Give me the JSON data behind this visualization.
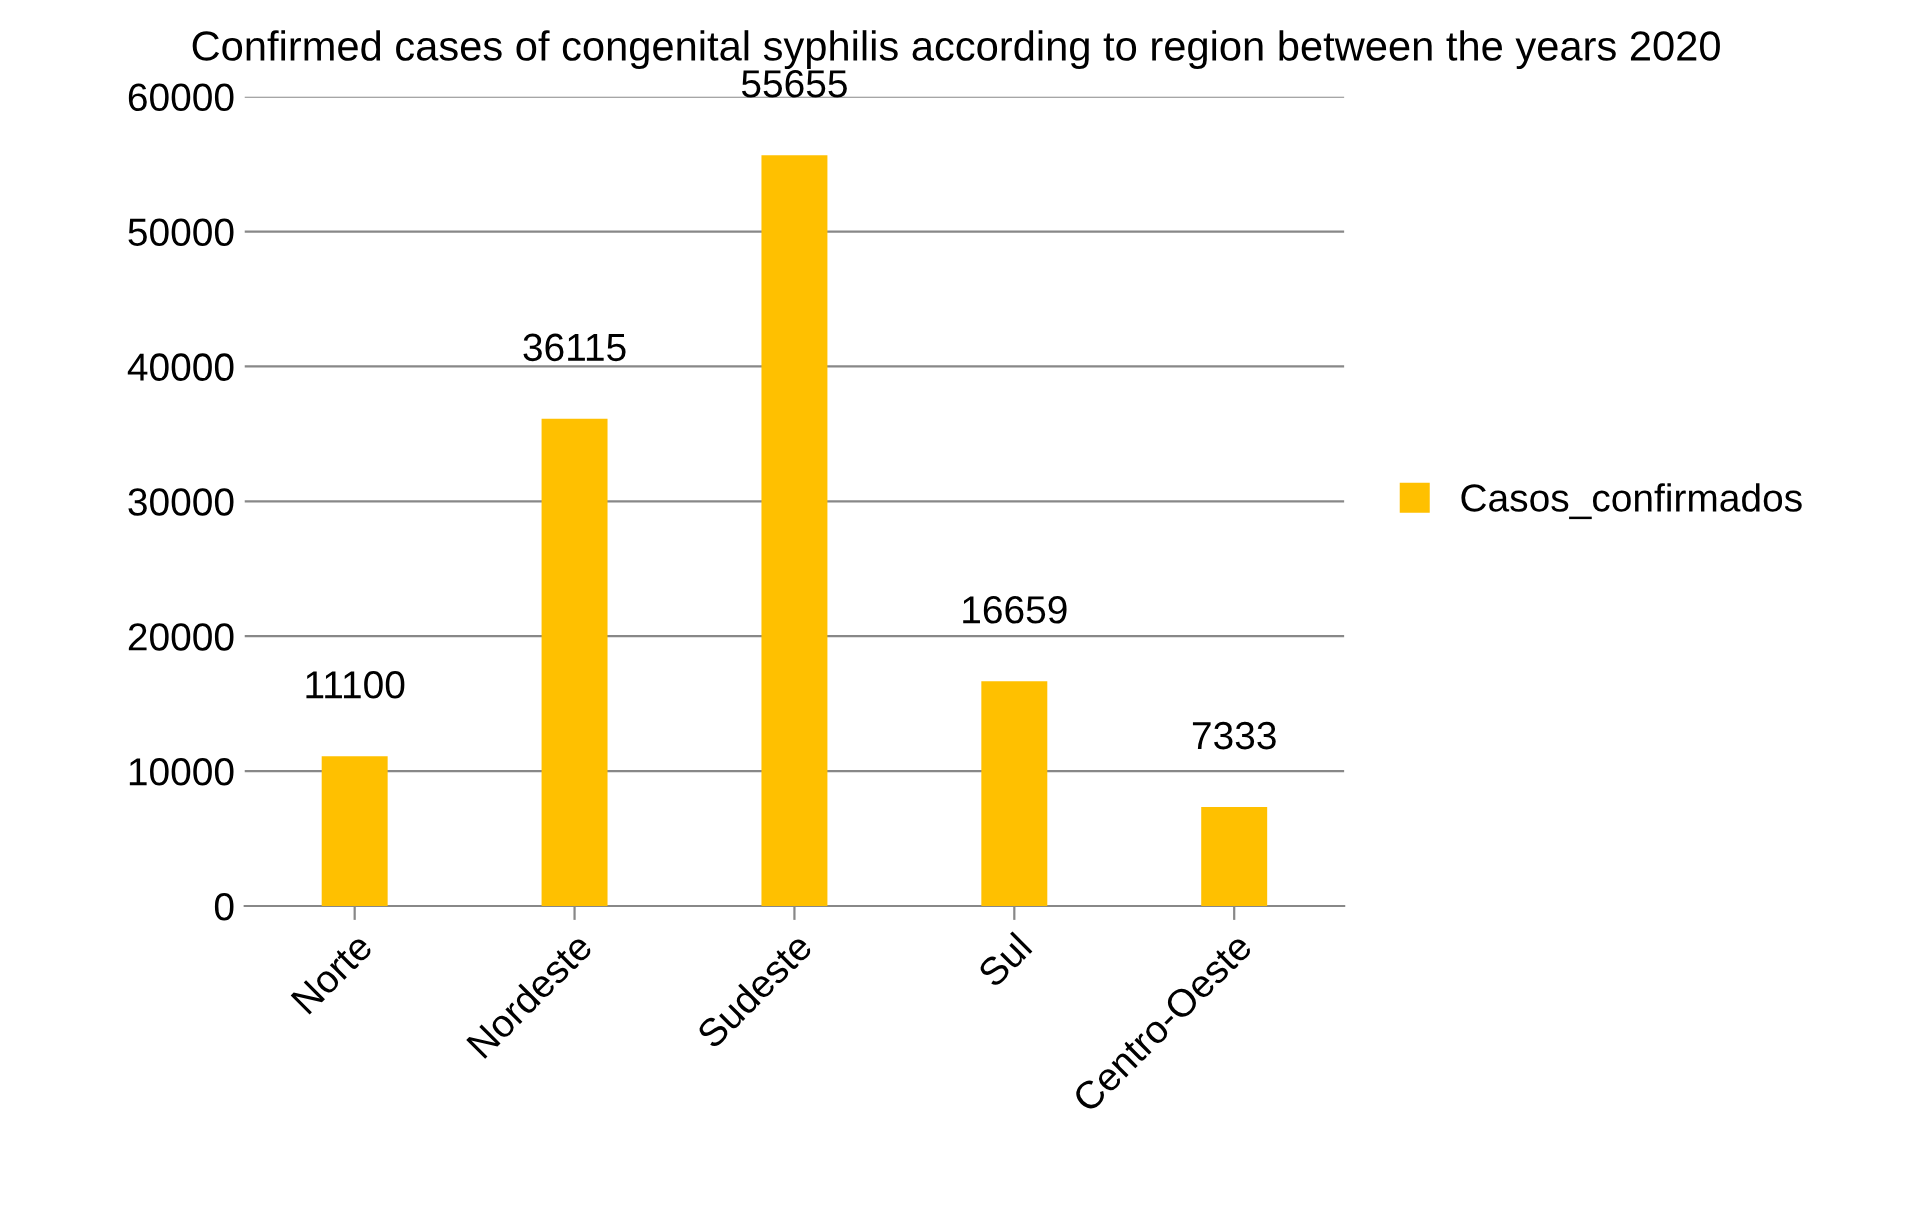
{
  "chart_data": {
    "type": "bar",
    "title": "Confirmed cases of congenital syphilis according to region between the years 2020",
    "categories": [
      "Norte",
      "Nordeste",
      "Sudeste",
      "Sul",
      "Centro-Oeste"
    ],
    "series": [
      {
        "name": "Casos_confirmados",
        "color": "#ffc000",
        "values": [
          11100,
          36115,
          55655,
          16659,
          7333
        ]
      }
    ],
    "ylim": [
      0,
      60000
    ],
    "yticks": [
      0,
      10000,
      20000,
      30000,
      40000,
      50000,
      60000
    ],
    "grid": "y",
    "legend": "right",
    "data_labels": true
  }
}
